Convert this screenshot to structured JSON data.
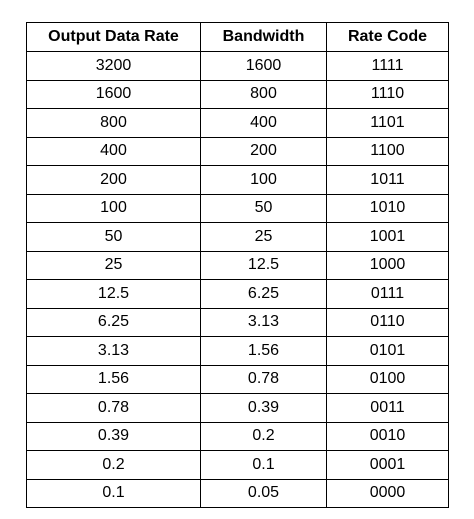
{
  "table": {
    "headers": [
      "Output Data Rate",
      "Bandwidth",
      "Rate Code"
    ],
    "rows": [
      [
        "3200",
        "1600",
        "1111"
      ],
      [
        "1600",
        "800",
        "1110"
      ],
      [
        "800",
        "400",
        "1101"
      ],
      [
        "400",
        "200",
        "1100"
      ],
      [
        "200",
        "100",
        "1011"
      ],
      [
        "100",
        "50",
        "1010"
      ],
      [
        "50",
        "25",
        "1001"
      ],
      [
        "25",
        "12.5",
        "1000"
      ],
      [
        "12.5",
        "6.25",
        "0111"
      ],
      [
        "6.25",
        "3.13",
        "0110"
      ],
      [
        "3.13",
        "1.56",
        "0101"
      ],
      [
        "1.56",
        "0.78",
        "0100"
      ],
      [
        "0.78",
        "0.39",
        "0011"
      ],
      [
        "0.39",
        "0.2",
        "0010"
      ],
      [
        "0.2",
        "0.1",
        "0001"
      ],
      [
        "0.1",
        "0.05",
        "0000"
      ]
    ]
  }
}
